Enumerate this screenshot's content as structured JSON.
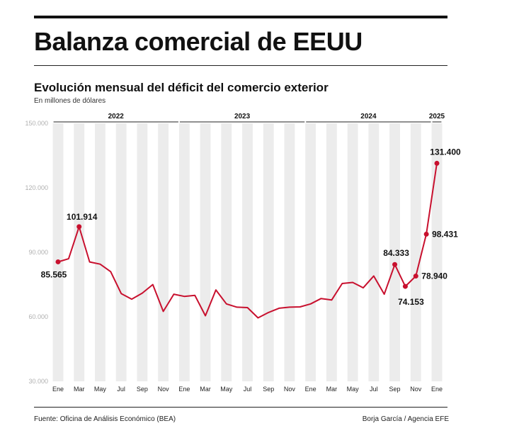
{
  "header": {
    "title": "Balanza comercial de EEUU",
    "subtitle": "Evolución mensual del déficit del comercio exterior",
    "units": "En millones de dólares"
  },
  "footer": {
    "source": "Fuente: Oficina de Análisis Económico (BEA)",
    "credit": "Borja García / Agencia EFE"
  },
  "chart_data": {
    "type": "line",
    "title": "Evolución mensual del déficit del comercio exterior",
    "ylabel": "En millones de dólares",
    "ylim": [
      30000,
      150000
    ],
    "y_ticks": [
      30000,
      60000,
      90000,
      120000,
      150000
    ],
    "y_tick_labels": [
      "30.000",
      "60.000",
      "90.000",
      "120.000",
      "150.000"
    ],
    "x_tick_labels": [
      "Ene",
      "Mar",
      "May",
      "Jul",
      "Sep",
      "Nov",
      "Ene",
      "Mar",
      "May",
      "Jul",
      "Sep",
      "Nov",
      "Ene",
      "Mar",
      "May",
      "Jul",
      "Sep",
      "Nov",
      "Ene"
    ],
    "x_tick_indices": [
      0,
      2,
      4,
      6,
      8,
      10,
      12,
      14,
      16,
      18,
      20,
      22,
      24,
      26,
      28,
      30,
      32,
      34,
      36
    ],
    "years": [
      {
        "label": "2022",
        "start": 0,
        "end": 11
      },
      {
        "label": "2023",
        "start": 12,
        "end": 23
      },
      {
        "label": "2024",
        "start": 24,
        "end": 35
      },
      {
        "label": "2025",
        "start": 36,
        "end": 36
      }
    ],
    "grid": "alternating vertical bands",
    "line_color": "#c8102e",
    "series": [
      {
        "values": [
          85565,
          87000,
          101914,
          85500,
          84500,
          81000,
          70800,
          68200,
          71000,
          75000,
          62500,
          70500,
          69500,
          70000,
          60500,
          72500,
          66000,
          64500,
          64300,
          59500,
          62000,
          64000,
          64500,
          64600,
          66000,
          68500,
          67800,
          75500,
          76000,
          73500,
          79000,
          70500,
          84333,
          74153,
          78940,
          98431,
          131400
        ]
      }
    ],
    "annotations": [
      {
        "index": 0,
        "label": "85.565"
      },
      {
        "index": 2,
        "label": "101.914"
      },
      {
        "index": 32,
        "label": "84.333"
      },
      {
        "index": 33,
        "label": "74.153"
      },
      {
        "index": 34,
        "label": "78.940"
      },
      {
        "index": 35,
        "label": "98.431"
      },
      {
        "index": 36,
        "label": "131.400"
      }
    ]
  }
}
